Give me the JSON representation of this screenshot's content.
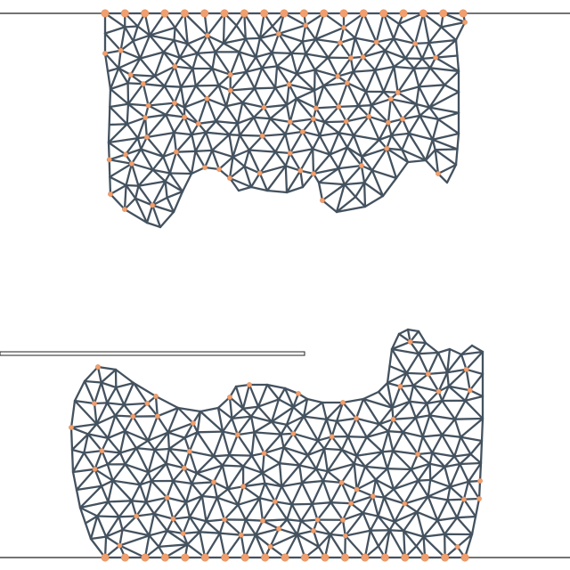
{
  "colors": {
    "background": "#ffffff",
    "mesh_edge": "#44525f",
    "node": "#f0a070",
    "node_edge": "#e08a55",
    "floor_line": "#222222",
    "ceiling_line": "#222222",
    "ledge": "#222222"
  },
  "icons": {
    "node": "circle",
    "ledge": "bar"
  }
}
